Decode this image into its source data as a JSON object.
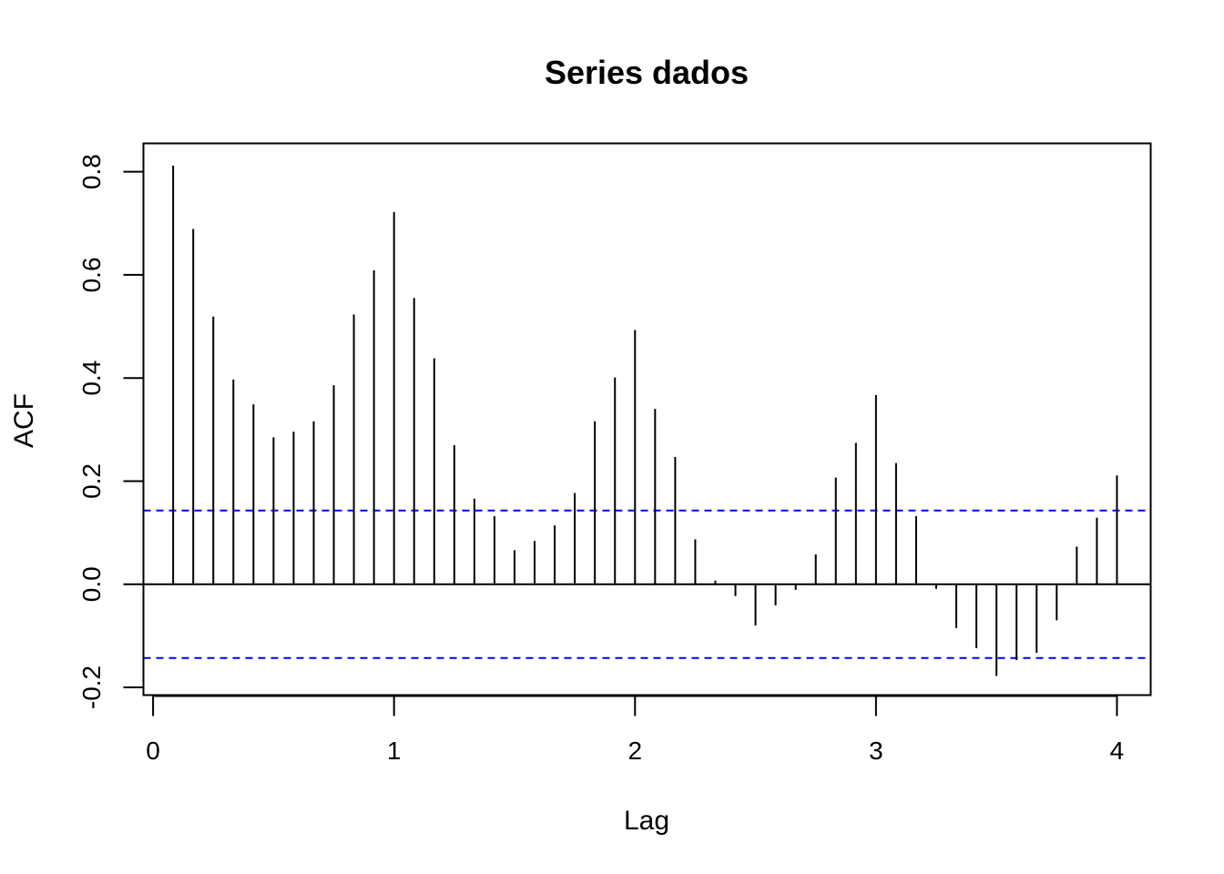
{
  "chart_data": {
    "type": "bar",
    "title": "Series dados",
    "xlabel": "Lag",
    "ylabel": "ACF",
    "xlim": [
      -0.04,
      4.14
    ],
    "ylim": [
      -0.215,
      0.855
    ],
    "x_ticks": [
      0,
      1,
      2,
      3,
      4
    ],
    "x_tick_labels": [
      "0",
      "1",
      "2",
      "3",
      "4"
    ],
    "y_ticks": [
      -0.2,
      0.0,
      0.2,
      0.4,
      0.6,
      0.8
    ],
    "y_tick_labels": [
      "-0.2",
      "0.0",
      "0.2",
      "0.4",
      "0.6",
      "0.8"
    ],
    "confidence_bounds": [
      0.143,
      -0.143
    ],
    "confidence_color": "#0000ff",
    "bar_color": "#000000",
    "grid": false,
    "lags": [
      0.0833,
      0.1667,
      0.25,
      0.3333,
      0.4167,
      0.5,
      0.5833,
      0.6667,
      0.75,
      0.8333,
      0.9167,
      1.0,
      1.0833,
      1.1667,
      1.25,
      1.3333,
      1.4167,
      1.5,
      1.5833,
      1.6667,
      1.75,
      1.8333,
      1.9167,
      2.0,
      2.0833,
      2.1667,
      2.25,
      2.3333,
      2.4167,
      2.5,
      2.5833,
      2.6667,
      2.75,
      2.8333,
      2.9167,
      3.0,
      3.0833,
      3.1667,
      3.25,
      3.3333,
      3.4167,
      3.5,
      3.5833,
      3.6667,
      3.75,
      3.8333,
      3.9167,
      4.0
    ],
    "values": [
      0.812,
      0.689,
      0.519,
      0.397,
      0.349,
      0.285,
      0.296,
      0.316,
      0.386,
      0.523,
      0.609,
      0.722,
      0.555,
      0.438,
      0.27,
      0.166,
      0.132,
      0.066,
      0.084,
      0.114,
      0.177,
      0.316,
      0.401,
      0.493,
      0.34,
      0.247,
      0.087,
      0.007,
      -0.023,
      -0.08,
      -0.041,
      -0.011,
      0.058,
      0.207,
      0.274,
      0.367,
      0.235,
      0.132,
      -0.009,
      -0.085,
      -0.124,
      -0.178,
      -0.147,
      -0.133,
      -0.07,
      0.073,
      0.129,
      0.211
    ]
  }
}
